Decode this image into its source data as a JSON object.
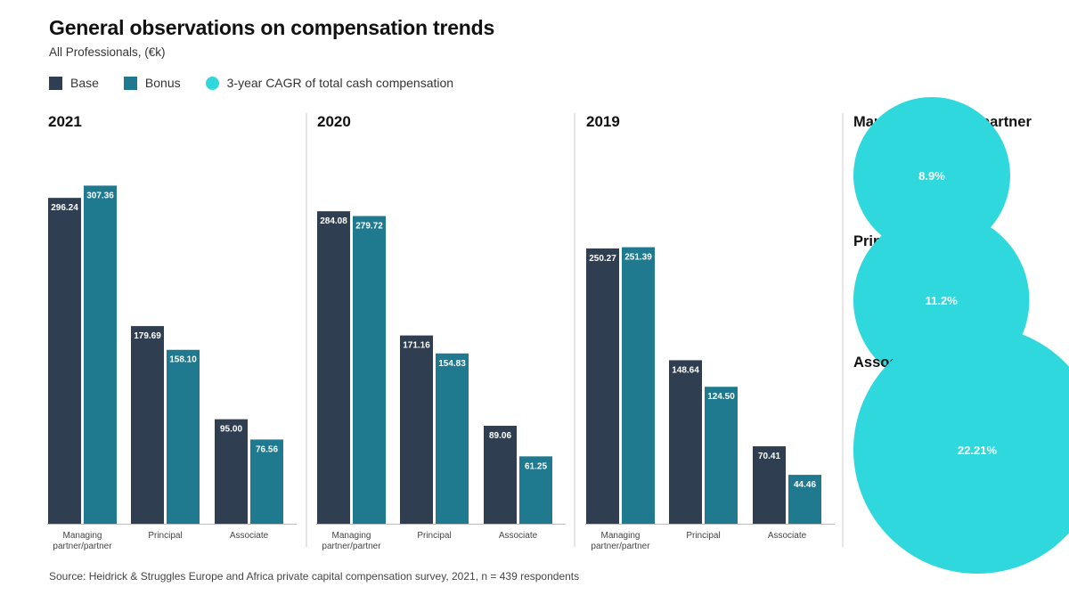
{
  "header": {
    "title": "General observations on compensation trends",
    "subtitle": "All Professionals, (€k)"
  },
  "legend": {
    "base": "Base",
    "bonus": "Bonus",
    "cagr": "3-year CAGR of total cash compensation"
  },
  "colors": {
    "base": "#2f3e50",
    "bonus": "#1f7a8f",
    "cagr": "#2ed8dc",
    "divider": "#cccccc"
  },
  "footer": {
    "source": "Source: Heidrick & Struggles Europe and Africa private capital compensation survey, 2021, n = 439 respondents"
  },
  "chart_data": [
    {
      "type": "bar",
      "title": "2021",
      "categories": [
        "Managing partner/partner",
        "Principal",
        "Associate"
      ],
      "series": [
        {
          "name": "Base",
          "values": [
            296.24,
            179.69,
            95.0
          ]
        },
        {
          "name": "Bonus",
          "values": [
            307.36,
            158.1,
            76.56
          ]
        }
      ]
    },
    {
      "type": "bar",
      "title": "2020",
      "categories": [
        "Managing partner/partner",
        "Principal",
        "Associate"
      ],
      "series": [
        {
          "name": "Base",
          "values": [
            284.08,
            171.16,
            89.06
          ]
        },
        {
          "name": "Bonus",
          "values": [
            279.72,
            154.83,
            61.25
          ]
        }
      ]
    },
    {
      "type": "bar",
      "title": "2019",
      "categories": [
        "Managing partner/partner",
        "Principal",
        "Associate"
      ],
      "series": [
        {
          "name": "Base",
          "values": [
            250.27,
            148.64,
            70.41
          ]
        },
        {
          "name": "Bonus",
          "values": [
            251.39,
            124.5,
            44.46
          ]
        }
      ]
    },
    {
      "type": "bubble",
      "series_name": "3-year CAGR of total cash compensation",
      "categories": [
        "Managing partner/partner",
        "Principal",
        "Associate"
      ],
      "values": [
        8.9,
        11.2,
        22.21
      ],
      "labels": [
        "8.9%",
        "11.2%",
        "22.21%"
      ]
    }
  ]
}
